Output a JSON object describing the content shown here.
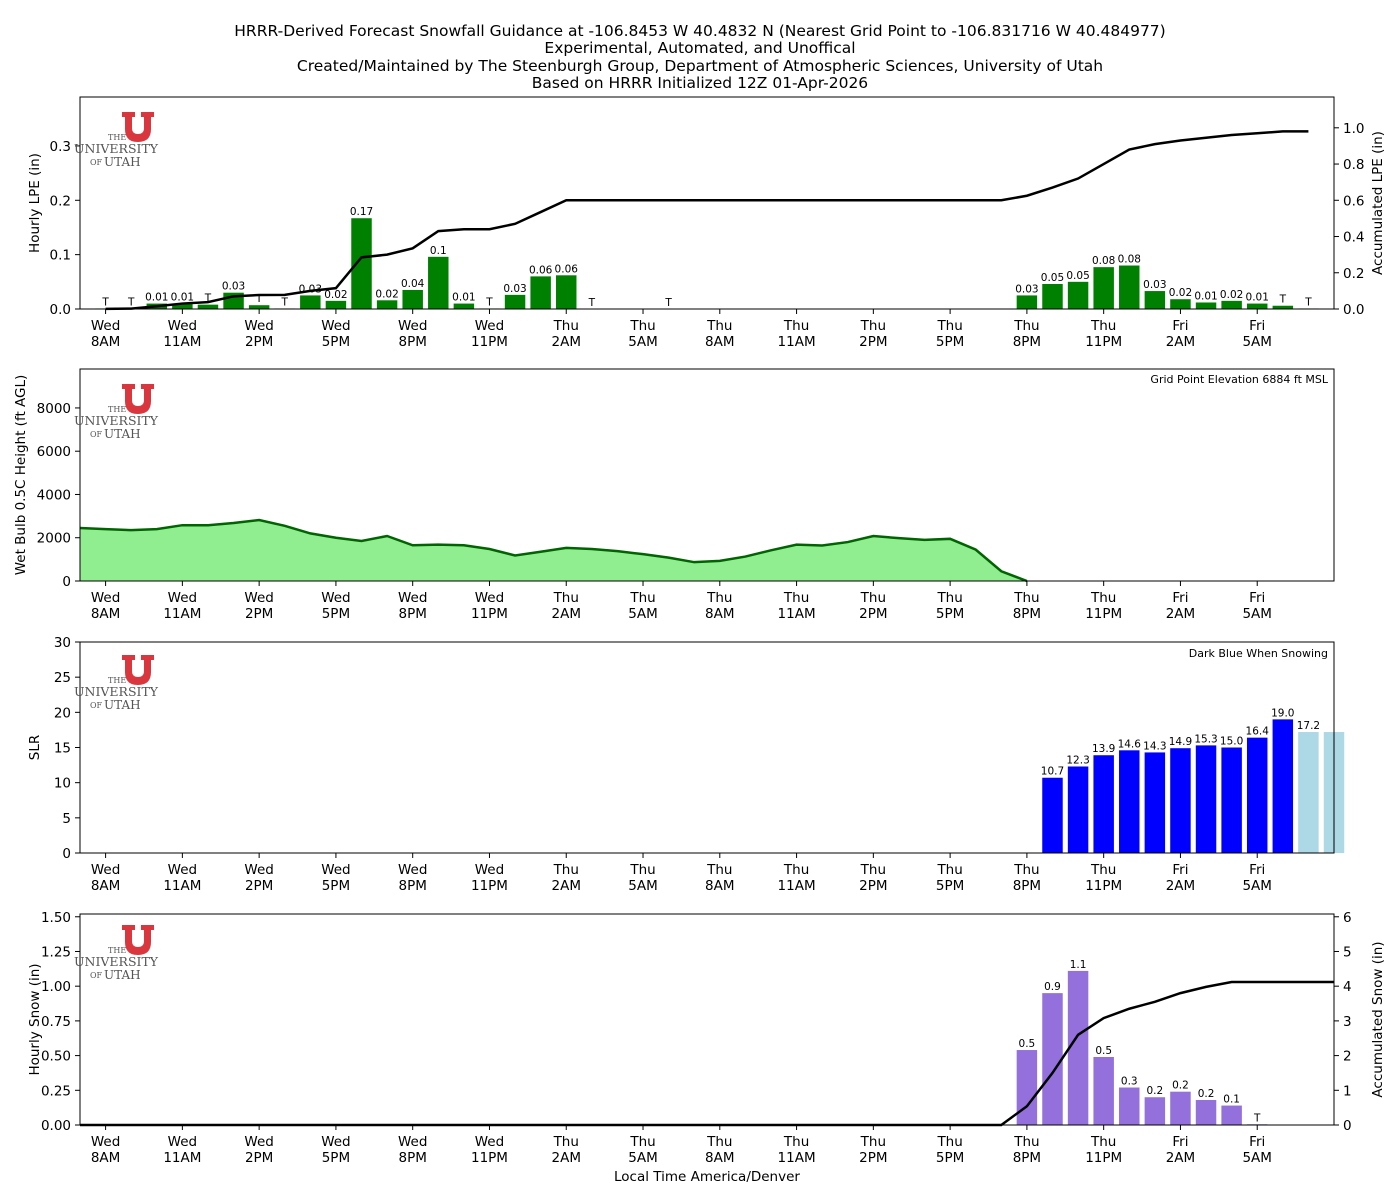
{
  "title_lines": [
    "HRRR-Derived Forecast Snowfall Guidance at -106.8453 W 40.4832 N (Nearest Grid Point to -106.831716 W 40.484977)",
    "Experimental, Automated, and Unoffical",
    "Created/Maintained by The Steenburgh Group, Department of Atmospheric Sciences, University of Utah",
    "Based on HRRR Initialized 12Z 01-Apr-2026"
  ],
  "x_tick_labels": [
    [
      "Wed",
      "8AM"
    ],
    [
      "Wed",
      "11AM"
    ],
    [
      "Wed",
      "2PM"
    ],
    [
      "Wed",
      "5PM"
    ],
    [
      "Wed",
      "8PM"
    ],
    [
      "Wed",
      "11PM"
    ],
    [
      "Thu",
      "2AM"
    ],
    [
      "Thu",
      "5AM"
    ],
    [
      "Thu",
      "8AM"
    ],
    [
      "Thu",
      "11AM"
    ],
    [
      "Thu",
      "2PM"
    ],
    [
      "Thu",
      "5PM"
    ],
    [
      "Thu",
      "8PM"
    ],
    [
      "Thu",
      "11PM"
    ],
    [
      "Fri",
      "2AM"
    ],
    [
      "Fri",
      "5AM"
    ]
  ],
  "xlabel": "Local Time America/Denver",
  "logo": {
    "the": "THE",
    "university": "UNIVERSITY",
    "of": "OF",
    "utah": "UTAH"
  },
  "colors": {
    "lpe_bar": "#008000",
    "wetbulb_fill": "#90ee90",
    "wetbulb_line": "#006400",
    "slr_snowing": "#0000ff",
    "slr_not_snowing": "#add8e6",
    "snow_bar": "#9370db",
    "accum_line": "#000000",
    "logo_red": "#d9363e"
  },
  "chart_data": [
    {
      "type": "bar",
      "panel": "hourly_lpe",
      "ylabel": "Hourly LPE (in)",
      "y2label": "Accumulated LPE (in)",
      "ylim": [
        0,
        0.39
      ],
      "y2lim": [
        0,
        1.17
      ],
      "yticks": [
        "0.0",
        "0.1",
        "0.2",
        "0.3"
      ],
      "y2ticks": [
        "0.0",
        "0.2",
        "0.4",
        "0.6",
        "0.8",
        "1.0"
      ],
      "x": [
        0,
        1,
        2,
        3,
        4,
        5,
        6,
        7,
        8,
        9,
        10,
        11,
        12,
        13,
        14,
        15,
        16,
        17,
        18,
        19,
        20,
        21,
        22,
        23,
        24,
        25,
        26,
        27,
        28,
        29,
        30,
        31,
        32,
        33,
        34,
        35,
        36,
        37,
        38,
        39,
        40,
        41,
        42,
        43,
        44,
        45,
        46,
        47
      ],
      "values": [
        0.001,
        0.001,
        0.01,
        0.01,
        0.008,
        0.03,
        0.007,
        0.001,
        0.025,
        0.015,
        0.167,
        0.016,
        0.035,
        0.096,
        0.01,
        0.001,
        0.026,
        0.06,
        0.062,
        0,
        0,
        0,
        0,
        0,
        0,
        0,
        0,
        0,
        0,
        0,
        0,
        0,
        0,
        0,
        0,
        0,
        0.025,
        0.046,
        0.05,
        0.077,
        0.08,
        0.033,
        0.018,
        0.012,
        0.015,
        0.01,
        0.006,
        0.001
      ],
      "bar_labels": [
        "T",
        "T",
        "0.01",
        "0.01",
        "T",
        "0.03",
        "T",
        "T",
        "0.03",
        "0.02",
        "0.17",
        "0.02",
        "0.04",
        "0.1",
        "0.01",
        "T",
        "0.03",
        "0.06",
        "0.06",
        "T",
        "",
        "",
        "T",
        "",
        "",
        "",
        "",
        "",
        "",
        "",
        "",
        "",
        "",
        "",
        "",
        "",
        "0.03",
        "0.05",
        "0.05",
        "0.08",
        "0.08",
        "0.03",
        "0.02",
        "0.01",
        "0.02",
        "0.01",
        "T",
        "T"
      ],
      "accumulated": [
        0.001,
        0.002,
        0.015,
        0.03,
        0.038,
        0.07,
        0.077,
        0.078,
        0.1,
        0.115,
        0.285,
        0.3,
        0.335,
        0.43,
        0.44,
        0.44,
        0.47,
        0.535,
        0.6,
        0.6,
        0.6,
        0.6,
        0.6,
        0.6,
        0.6,
        0.6,
        0.6,
        0.6,
        0.6,
        0.6,
        0.6,
        0.6,
        0.6,
        0.6,
        0.6,
        0.6,
        0.625,
        0.67,
        0.72,
        0.8,
        0.88,
        0.91,
        0.93,
        0.945,
        0.96,
        0.97,
        0.98,
        0.98
      ]
    },
    {
      "type": "area",
      "panel": "wet_bulb_height",
      "ylabel": "Wet Bulb 0.5C Height (ft AGL)",
      "ylim": [
        0,
        9800
      ],
      "yticks": [
        "0",
        "2000",
        "4000",
        "6000",
        "8000"
      ],
      "annotation": "Grid Point Elevation 6884 ft MSL",
      "x": [
        -1,
        0,
        1,
        2,
        3,
        4,
        5,
        6,
        7,
        8,
        9,
        10,
        11,
        12,
        13,
        14,
        15,
        16,
        17,
        18,
        19,
        20,
        21,
        22,
        23,
        24,
        25,
        26,
        27,
        28,
        29,
        30,
        31,
        32,
        33,
        34,
        35,
        36,
        37,
        38,
        39,
        40,
        41,
        42,
        43,
        44,
        45,
        46,
        47,
        48
      ],
      "values": [
        2450,
        2400,
        2350,
        2400,
        2580,
        2580,
        2680,
        2820,
        2550,
        2200,
        2000,
        1850,
        2080,
        1650,
        1680,
        1650,
        1480,
        1180,
        1350,
        1530,
        1480,
        1380,
        1240,
        1080,
        870,
        930,
        1130,
        1420,
        1680,
        1640,
        1800,
        2080,
        1980,
        1900,
        1950,
        1450,
        450,
        0,
        0,
        0,
        0,
        0,
        0,
        0,
        0,
        0,
        0,
        0,
        0,
        0
      ]
    },
    {
      "type": "bar",
      "panel": "slr",
      "ylabel": "SLR",
      "ylim": [
        0,
        30
      ],
      "yticks": [
        "0",
        "5",
        "10",
        "15",
        "20",
        "25",
        "30"
      ],
      "annotation": "Dark Blue When Snowing",
      "x": [
        37,
        38,
        39,
        40,
        41,
        42,
        43,
        44,
        45,
        46,
        47,
        48
      ],
      "values": [
        10.7,
        12.3,
        13.9,
        14.6,
        14.3,
        14.9,
        15.3,
        15.0,
        16.4,
        19.0,
        17.2,
        17.2
      ],
      "bar_labels": [
        "10.7",
        "12.3",
        "13.9",
        "14.6",
        "14.3",
        "14.9",
        "15.3",
        "15.0",
        "16.4",
        "19.0",
        "17.2",
        ""
      ],
      "snowing": [
        true,
        true,
        true,
        true,
        true,
        true,
        true,
        true,
        true,
        true,
        false,
        false
      ]
    },
    {
      "type": "bar",
      "panel": "hourly_snow",
      "ylabel": "Hourly Snow (in)",
      "y2label": "Accumulated Snow (in)",
      "xlabel": "Local Time America/Denver",
      "ylim": [
        0,
        1.52
      ],
      "y2lim": [
        0,
        6.08
      ],
      "yticks": [
        "0.00",
        "0.25",
        "0.50",
        "0.75",
        "1.00",
        "1.25",
        "1.50"
      ],
      "y2ticks": [
        "0",
        "1",
        "2",
        "3",
        "4",
        "5",
        "6"
      ],
      "x": [
        36,
        37,
        38,
        39,
        40,
        41,
        42,
        43,
        44,
        45,
        46
      ],
      "values": [
        0.54,
        0.95,
        1.11,
        0.49,
        0.27,
        0.2,
        0.24,
        0.18,
        0.14,
        0.005,
        0
      ],
      "bar_labels": [
        "0.5",
        "0.9",
        "1.1",
        "0.5",
        "0.3",
        "0.2",
        "0.2",
        "0.2",
        "0.1",
        "T",
        ""
      ],
      "accumulated_x": [
        -1,
        0,
        34,
        35,
        36,
        37,
        38,
        39,
        40,
        41,
        42,
        43,
        44,
        45,
        46,
        47,
        48
      ],
      "accumulated": [
        0,
        0,
        0,
        0,
        0.54,
        1.5,
        2.6,
        3.08,
        3.35,
        3.55,
        3.8,
        3.98,
        4.12,
        4.12,
        4.12,
        4.12,
        4.12
      ]
    }
  ]
}
